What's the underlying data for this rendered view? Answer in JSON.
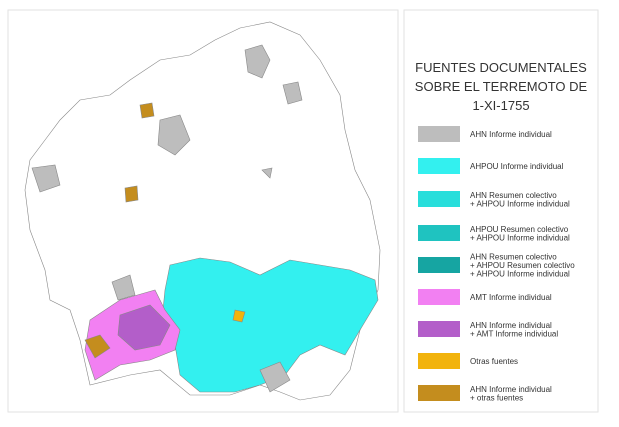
{
  "title_lines": [
    "FUENTES DOCUMENTALES",
    "SOBRE EL TERREMOTO DE",
    "1-XI-1755"
  ],
  "legend": [
    {
      "color": "#bdbdbd",
      "lines": [
        "AHN Informe individual"
      ]
    },
    {
      "color": "#33f0ef",
      "lines": [
        "AHPOU Informe individual"
      ]
    },
    {
      "color": "#28dedb",
      "lines": [
        "AHN Resumen colectivo",
        "+ AHPOU Informe individual"
      ]
    },
    {
      "color": "#1fc3c0",
      "lines": [
        "AHPOU Resumen colectivo",
        "+ AHPOU Informe individual"
      ]
    },
    {
      "color": "#16a5a2",
      "lines": [
        "AHN Resumen colectivo",
        "+ AHPOU Resumen colectivo",
        "+ AHPOU Informe individual"
      ]
    },
    {
      "color": "#f280f2",
      "lines": [
        "AMT Informe individual"
      ]
    },
    {
      "color": "#b35ec9",
      "lines": [
        "AHN Informe individual",
        "+ AMT Informe individual"
      ]
    },
    {
      "color": "#f2b30c",
      "lines": [
        "Otras fuentes"
      ]
    },
    {
      "color": "#c48d1e",
      "lines": [
        "AHN Informe individual",
        "+ otras fuentes"
      ]
    }
  ]
}
